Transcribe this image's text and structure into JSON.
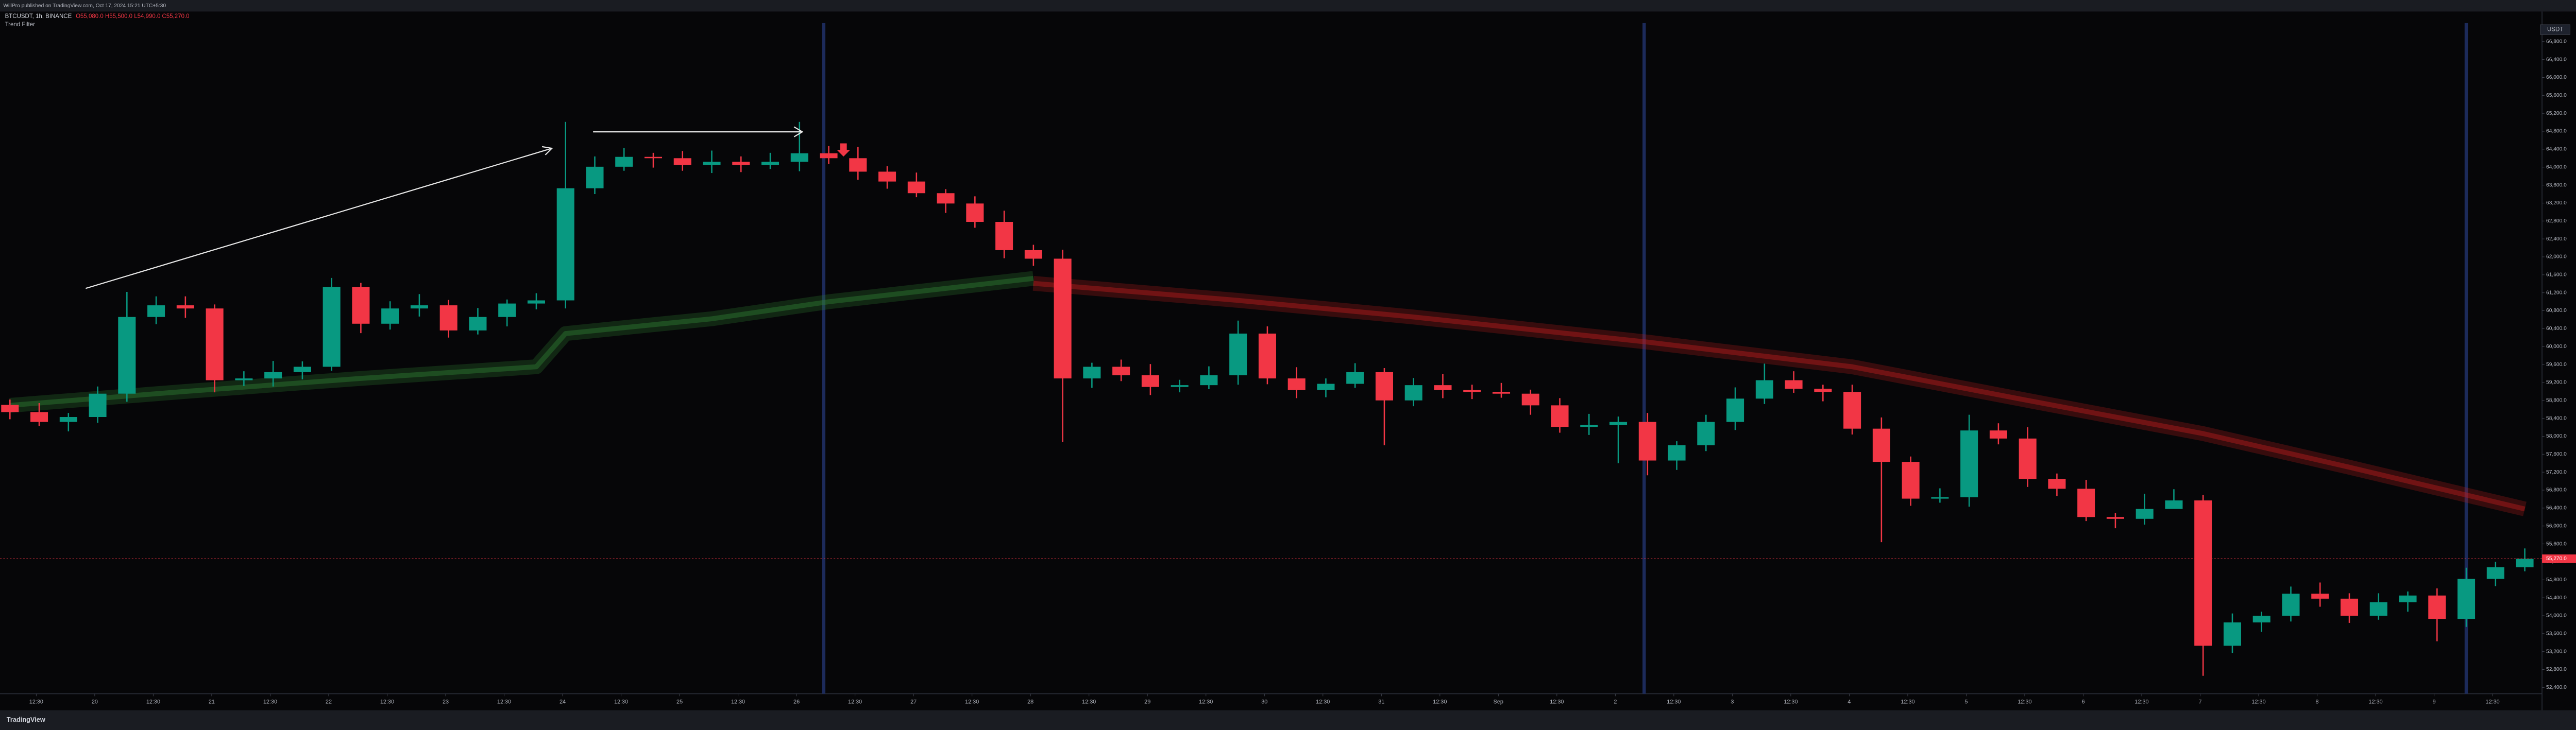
{
  "header": {
    "publisher": "WillPro published on TradingView.com, Oct 17, 2024 15:21 UTC+5:30",
    "symbol": "BTCUSDT, 1h, BINANCE",
    "ohlc": "O55,080.0 H55,500.0 L54,990.0 C55,270.0",
    "currency": "USDT",
    "brand": "TradingView"
  },
  "chart_data": {
    "type": "candlestick",
    "open": [
      58700,
      58540,
      58320,
      58430,
      58950,
      60660,
      60920,
      60850,
      59250,
      59290,
      59430,
      59550,
      61330,
      60510,
      60850,
      60920,
      60360,
      60660,
      60960,
      61030,
      63530,
      64010,
      64230,
      64200,
      64050,
      64120,
      64050,
      64120,
      64310,
      64200,
      63900,
      63680,
      63420,
      63190,
      62780,
      62150,
      61960,
      59290,
      59550,
      59360,
      59100,
      59140,
      59360,
      60290,
      59290,
      59030,
      59170,
      59430,
      58800,
      59140,
      59030,
      58990,
      58950,
      58690,
      58210,
      58250,
      58320,
      57460,
      57800,
      58320,
      58840,
      59250,
      59060,
      58990,
      58170,
      57430,
      56610,
      56640,
      58130,
      57950,
      57050,
      56830,
      56200,
      56160,
      56380,
      56570,
      53330,
      53850,
      54000,
      54490,
      54380,
      54000,
      54300,
      54450,
      53930,
      54820,
      55080
    ],
    "high": [
      58820,
      58740,
      58520,
      59110,
      61220,
      61120,
      61120,
      60940,
      59450,
      59680,
      59670,
      61530,
      61420,
      61010,
      61170,
      61040,
      60860,
      61050,
      61190,
      65010,
      64240,
      64430,
      64320,
      64360,
      64370,
      64240,
      64320,
      65010,
      64470,
      64450,
      64020,
      63880,
      63510,
      63350,
      63030,
      62270,
      62160,
      59640,
      59710,
      59610,
      59260,
      59560,
      60580,
      60450,
      59540,
      59290,
      59630,
      59520,
      59300,
      59390,
      59150,
      59190,
      59040,
      58850,
      58500,
      58440,
      58520,
      57890,
      58480,
      59090,
      59620,
      59450,
      59150,
      59150,
      58420,
      57550,
      56840,
      58480,
      58290,
      58200,
      57170,
      57030,
      56290,
      56720,
      56820,
      56690,
      54050,
      54090,
      54650,
      54740,
      54500,
      54500,
      54540,
      54610,
      55070,
      55200,
      55500
    ],
    "low": [
      58380,
      58230,
      58110,
      58300,
      58770,
      60500,
      60640,
      58980,
      59120,
      59110,
      59270,
      59460,
      60300,
      60380,
      60670,
      60200,
      60270,
      60450,
      60830,
      60850,
      63400,
      63920,
      63990,
      63920,
      63870,
      63890,
      63960,
      63910,
      64070,
      63720,
      63520,
      63330,
      62980,
      62650,
      61970,
      61800,
      57870,
      59080,
      59230,
      58920,
      58980,
      59050,
      59150,
      59160,
      58850,
      58870,
      59080,
      57800,
      58670,
      58850,
      58830,
      58860,
      58480,
      58080,
      58030,
      57400,
      57130,
      57250,
      57670,
      58140,
      58720,
      58970,
      58780,
      58040,
      55640,
      56450,
      56520,
      56430,
      57820,
      56870,
      56670,
      56110,
      55950,
      56030,
      56390,
      52660,
      53170,
      53640,
      53870,
      54200,
      53840,
      53910,
      54090,
      53430,
      53750,
      54660,
      54990
    ],
    "close": [
      58540,
      58320,
      58430,
      58950,
      60660,
      60920,
      60850,
      59250,
      59290,
      59430,
      59550,
      61330,
      60510,
      60850,
      60920,
      60360,
      60660,
      60960,
      61030,
      63530,
      64010,
      64230,
      64200,
      64050,
      64120,
      64050,
      64120,
      64310,
      64200,
      63900,
      63680,
      63420,
      63190,
      62780,
      62150,
      61960,
      59290,
      59550,
      59360,
      59100,
      59140,
      59360,
      60290,
      59290,
      59030,
      59170,
      59430,
      58800,
      59140,
      59030,
      58990,
      58950,
      58690,
      58210,
      58250,
      58320,
      57460,
      57800,
      58320,
      58840,
      59250,
      59060,
      58990,
      58170,
      57430,
      56610,
      56640,
      58130,
      57950,
      57050,
      56830,
      56200,
      56160,
      56380,
      56570,
      53330,
      53850,
      54000,
      54490,
      54380,
      54000,
      54300,
      54450,
      53930,
      54820,
      55080,
      55270
    ],
    "up_color": "#089981",
    "down_color": "#f23645",
    "xlim": [
      -0.34,
      86.59
    ],
    "xticks": [
      {
        "value": 0.9,
        "label": "12:30"
      },
      {
        "value": 2.9,
        "label": "20"
      },
      {
        "value": 4.9,
        "label": "12:30"
      },
      {
        "value": 6.9,
        "label": "21"
      },
      {
        "value": 8.9,
        "label": "12:30"
      },
      {
        "value": 10.9,
        "label": "22"
      },
      {
        "value": 12.9,
        "label": "12:30"
      },
      {
        "value": 14.9,
        "label": "23"
      },
      {
        "value": 16.9,
        "label": "12:30"
      },
      {
        "value": 18.9,
        "label": "24"
      },
      {
        "value": 20.9,
        "label": "12:30"
      },
      {
        "value": 22.9,
        "label": "25"
      },
      {
        "value": 24.9,
        "label": "12:30"
      },
      {
        "value": 26.9,
        "label": "26"
      },
      {
        "value": 28.9,
        "label": "12:30"
      },
      {
        "value": 30.9,
        "label": "27"
      },
      {
        "value": 32.9,
        "label": "12:30"
      },
      {
        "value": 34.9,
        "label": "28"
      },
      {
        "value": 36.9,
        "label": "12:30"
      },
      {
        "value": 38.9,
        "label": "29"
      },
      {
        "value": 40.9,
        "label": "12:30"
      },
      {
        "value": 42.9,
        "label": "30"
      },
      {
        "value": 44.9,
        "label": "12:30"
      },
      {
        "value": 46.9,
        "label": "31"
      },
      {
        "value": 48.9,
        "label": "12:30"
      },
      {
        "value": 50.9,
        "label": "Sep"
      },
      {
        "value": 52.9,
        "label": "12:30"
      },
      {
        "value": 54.9,
        "label": "2"
      },
      {
        "value": 56.9,
        "label": "12:30"
      },
      {
        "value": 58.9,
        "label": "3"
      },
      {
        "value": 60.9,
        "label": "12:30"
      },
      {
        "value": 62.9,
        "label": "4"
      },
      {
        "value": 64.9,
        "label": "12:30"
      },
      {
        "value": 66.9,
        "label": "5"
      },
      {
        "value": 68.9,
        "label": "12:30"
      },
      {
        "value": 70.9,
        "label": "6"
      },
      {
        "value": 72.9,
        "label": "12:30"
      },
      {
        "value": 74.9,
        "label": "7"
      },
      {
        "value": 76.9,
        "label": "12:30"
      },
      {
        "value": 78.9,
        "label": "8"
      },
      {
        "value": 80.9,
        "label": "12:30"
      },
      {
        "value": 82.9,
        "label": "9"
      },
      {
        "value": 84.9,
        "label": "12:30"
      }
    ],
    "ylim": [
      52260,
      67470
    ],
    "yticks": [
      {
        "value": 52400,
        "label": "52,400.0"
      },
      {
        "value": 52800,
        "label": "52,800.0"
      },
      {
        "value": 53200,
        "label": "53,200.0"
      },
      {
        "value": 53600,
        "label": "53,600.0"
      },
      {
        "value": 54000,
        "label": "54,000.0"
      },
      {
        "value": 54400,
        "label": "54,400.0"
      },
      {
        "value": 54800,
        "label": "54,800.0"
      },
      {
        "value": 55200,
        "label": "55,200.0"
      },
      {
        "value": 55600,
        "label": "55,600.0"
      },
      {
        "value": 56000,
        "label": "56,000.0"
      },
      {
        "value": 56400,
        "label": "56,400.0"
      },
      {
        "value": 56800,
        "label": "56,800.0"
      },
      {
        "value": 57200,
        "label": "57,200.0"
      },
      {
        "value": 57600,
        "label": "57,600.0"
      },
      {
        "value": 58000,
        "label": "58,000.0"
      },
      {
        "value": 58400,
        "label": "58,400.0"
      },
      {
        "value": 58800,
        "label": "58,800.0"
      },
      {
        "value": 59200,
        "label": "59,200.0"
      },
      {
        "value": 59600,
        "label": "59,600.0"
      },
      {
        "value": 60000,
        "label": "60,000.0"
      },
      {
        "value": 60400,
        "label": "60,400.0"
      },
      {
        "value": 60800,
        "label": "60,800.0"
      },
      {
        "value": 61200,
        "label": "61,200.0"
      },
      {
        "value": 61600,
        "label": "61,600.0"
      },
      {
        "value": 62000,
        "label": "62,000.0"
      },
      {
        "value": 62400,
        "label": "62,400.0"
      },
      {
        "value": 62800,
        "label": "62,800.0"
      },
      {
        "value": 63200,
        "label": "63,200.0"
      },
      {
        "value": 63600,
        "label": "63,600.0"
      },
      {
        "value": 64000,
        "label": "64,000.0"
      },
      {
        "value": 64400,
        "label": "64,400.0"
      },
      {
        "value": 64800,
        "label": "64,800.0"
      },
      {
        "value": 65200,
        "label": "65,200.0"
      },
      {
        "value": 65600,
        "label": "65,600.0"
      },
      {
        "value": 66000,
        "label": "66,000.0"
      },
      {
        "value": 66400,
        "label": "66,400.0"
      },
      {
        "value": 66800,
        "label": "66,800.0"
      }
    ],
    "last_price": {
      "value": 55270,
      "label": "55,270.0",
      "color": "#f23645"
    },
    "trend_filter": {
      "name": "Trend Filter",
      "series": [
        {
          "color": "#2e7d32",
          "x": [
            0,
            6,
            12,
            18,
            19,
            24,
            28,
            35
          ],
          "values": [
            58690,
            59000,
            59290,
            59550,
            60290,
            60620,
            61000,
            61520
          ]
        },
        {
          "color": "#b71c1c",
          "x": [
            35,
            42,
            48,
            56,
            63,
            69,
            75,
            80,
            86
          ],
          "values": [
            61410,
            61030,
            60660,
            60100,
            59550,
            58800,
            58060,
            57310,
            56380
          ]
        }
      ]
    }
  }
}
